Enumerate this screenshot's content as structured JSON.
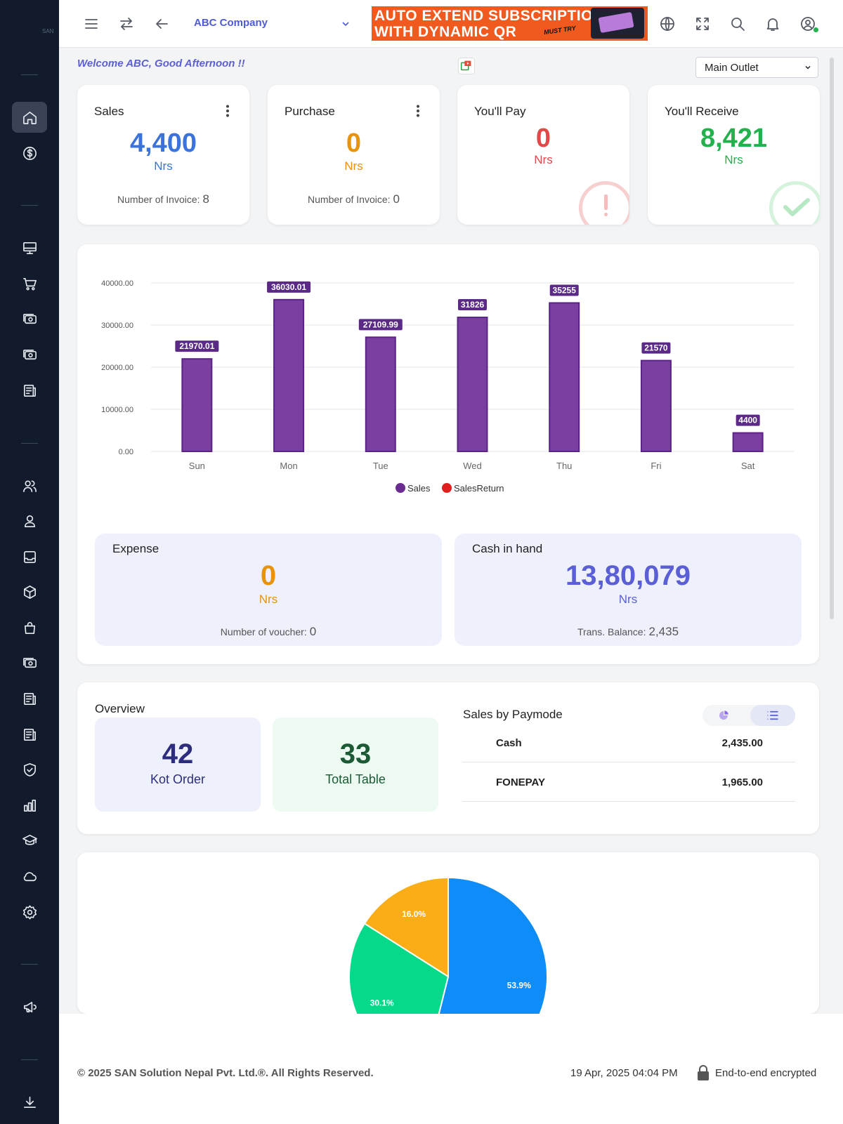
{
  "header": {
    "company": "ABC Company",
    "banner_line1": "AUTO EXTEND SUBSCRIPTION",
    "banner_line2": "WITH DYNAMIC QR",
    "banner_tag": "MUST TRY"
  },
  "welcome": "Welcome ABC, Good Afternoon !!",
  "outlet": {
    "selected": "Main Outlet"
  },
  "cards": {
    "sales": {
      "title": "Sales",
      "value": "4,400",
      "unit": "Nrs",
      "invoice_label": "Number of Invoice:",
      "invoice_count": "8",
      "color": "#3b73db"
    },
    "purchase": {
      "title": "Purchase",
      "value": "0",
      "unit": "Nrs",
      "invoice_label": "Number of Invoice:",
      "invoice_count": "0",
      "color": "#e8930c"
    },
    "pay": {
      "title": "You'll Pay",
      "value": "0",
      "unit": "Nrs",
      "color": "#e04949"
    },
    "receive": {
      "title": "You'll Receive",
      "value": "8,421",
      "unit": "Nrs",
      "color": "#22b14c"
    }
  },
  "chart_data": {
    "type": "bar",
    "categories": [
      "Sun",
      "Mon",
      "Tue",
      "Wed",
      "Thu",
      "Fri",
      "Sat"
    ],
    "series": [
      {
        "name": "Sales",
        "values": [
          21970.01,
          36030.01,
          27109.99,
          31826,
          35255,
          21570,
          4400
        ],
        "color": "#7b3fa0"
      }
    ],
    "data_labels": [
      "21970.01",
      "36030.01",
      "27109.99",
      "31826",
      "35255",
      "21570",
      "4400"
    ],
    "ylim": [
      0,
      40000
    ],
    "yticks": [
      "40000.00",
      "30000.00",
      "20000.00",
      "10000.00",
      "0.00"
    ],
    "ytick_values": [
      40000,
      30000,
      20000,
      10000,
      0
    ],
    "legend": [
      {
        "name": "Sales",
        "color": "#6a2c91"
      },
      {
        "name": "SalesReturn",
        "color": "#e0201f"
      }
    ],
    "legend_position": "bottom",
    "grid": true
  },
  "expense": {
    "title": "Expense",
    "value": "0",
    "unit": "Nrs",
    "label": "Number of voucher:",
    "count": "0",
    "color": "#e8930c"
  },
  "cash": {
    "title": "Cash in hand",
    "value": "13,80,079",
    "unit": "Nrs",
    "label": "Trans. Balance:",
    "count": "2,435",
    "color": "#5a5fd6"
  },
  "overview": {
    "title": "Overview",
    "kot": {
      "value": "42",
      "label": "Kot Order"
    },
    "table": {
      "value": "33",
      "label": "Total Table"
    }
  },
  "paymode": {
    "title": "Sales by Paymode",
    "rows": [
      {
        "name": "Cash",
        "amount": "2,435.00"
      },
      {
        "name": "FONEPAY",
        "amount": "1,965.00"
      }
    ]
  },
  "pie": {
    "slices": [
      {
        "label": "53.9%",
        "value": 53.9,
        "color": "#0e8cf7"
      },
      {
        "label": "30.1%",
        "value": 30.1,
        "color": "#07d98b"
      },
      {
        "label": "16.0%",
        "value": 16.0,
        "color": "#fbad18"
      }
    ]
  },
  "footer": {
    "copyright": "© 2025  SAN Solution Nepal Pvt. Ltd.®. All Rights Reserved.",
    "datetime": "19 Apr, 2025 04:04 PM",
    "encryption": "End-to-end encrypted"
  },
  "sidebar": {
    "logo": "SAN"
  }
}
